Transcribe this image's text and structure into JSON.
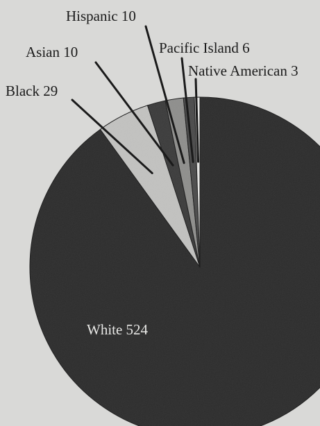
{
  "chart_data": {
    "type": "pie",
    "title": "",
    "slices": [
      {
        "label": "White",
        "value": 524,
        "display": "White 524",
        "color": "#2b2b2b"
      },
      {
        "label": "Black",
        "value": 29,
        "display": "Black 29",
        "color": "#c2c2c0"
      },
      {
        "label": "Asian",
        "value": 10,
        "display": "Asian 10",
        "color": "#3a3a3a"
      },
      {
        "label": "Hispanic",
        "value": 10,
        "display": "Hispanic 10",
        "color": "#8e8e8c"
      },
      {
        "label": "Pacific Island",
        "value": 6,
        "display": "Pacific Island 6",
        "color": "#4a4a4a"
      },
      {
        "label": "Native American",
        "value": 3,
        "display": "Native American 3",
        "color": "#e6e6e4"
      }
    ]
  }
}
